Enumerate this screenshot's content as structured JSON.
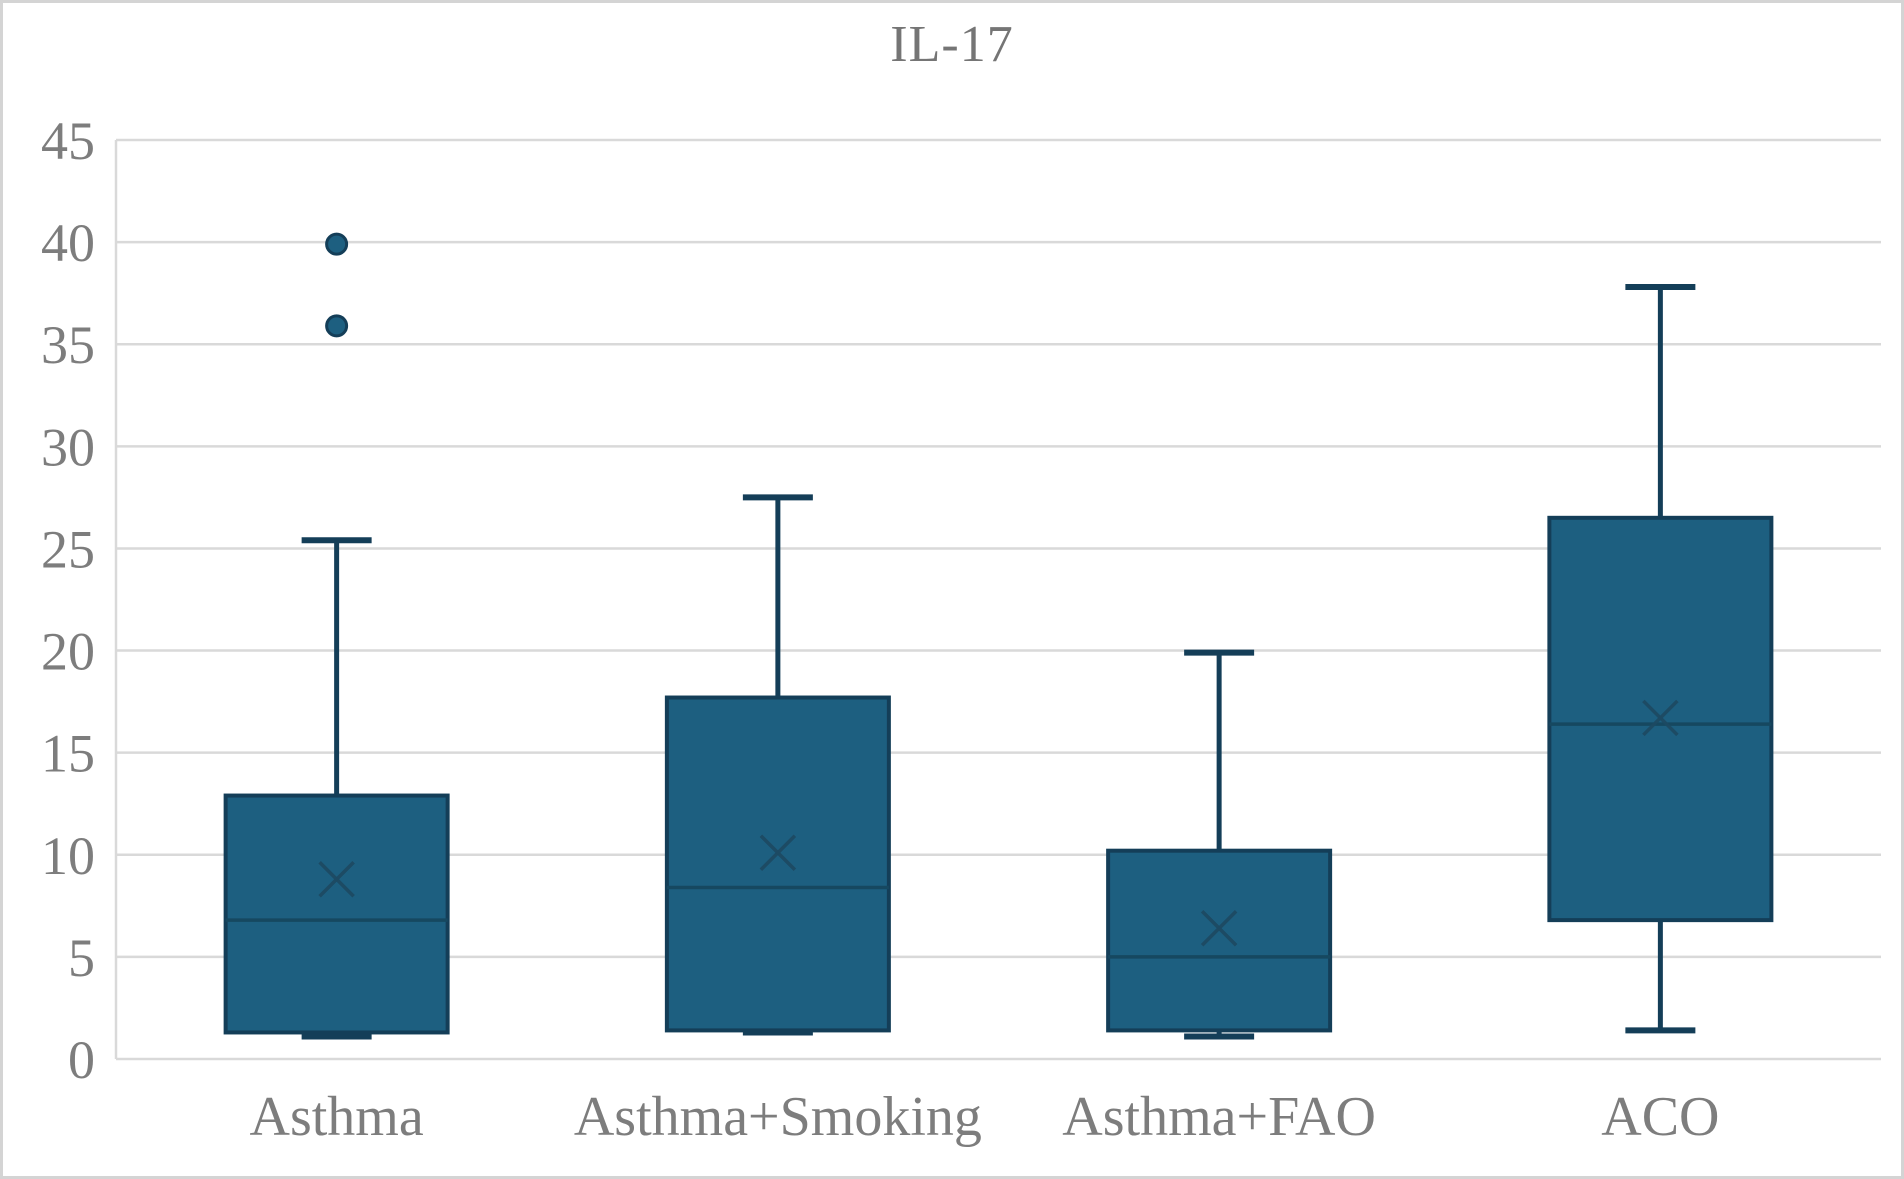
{
  "chart_data": {
    "type": "boxplot",
    "title": "IL-17",
    "categories": [
      "Asthma",
      "Asthma+Smoking",
      "Asthma+FAO",
      "ACO"
    ],
    "series": [
      {
        "name": "Asthma",
        "min": 1.1,
        "q1": 1.3,
        "median": 6.8,
        "mean": 8.8,
        "q3": 12.9,
        "max": 25.4,
        "outliers": [
          35.9,
          39.9
        ]
      },
      {
        "name": "Asthma+Smoking",
        "min": 1.3,
        "q1": 1.4,
        "median": 8.4,
        "mean": 10.1,
        "q3": 17.7,
        "max": 27.5,
        "outliers": []
      },
      {
        "name": "Asthma+FAO",
        "min": 1.1,
        "q1": 1.4,
        "median": 5.0,
        "mean": 6.4,
        "q3": 10.2,
        "max": 19.9,
        "outliers": []
      },
      {
        "name": "ACO",
        "min": 1.4,
        "q1": 6.8,
        "median": 16.4,
        "mean": 16.7,
        "q3": 26.5,
        "max": 37.8,
        "outliers": []
      }
    ],
    "xlabel": "",
    "ylabel": "",
    "ylim": [
      0,
      45
    ],
    "yticks": [
      0,
      5,
      10,
      15,
      20,
      25,
      30,
      35,
      40,
      45
    ],
    "grid": true,
    "legend": "none",
    "colors": {
      "box_fill": "#1d5f80",
      "box_stroke": "#143e58",
      "median_line": "#164860",
      "mean_marker": "#1d4a63",
      "outlier_fill": "#1d5f80",
      "outlier_stroke": "#143e58",
      "gridline": "#d9d9d9",
      "axis_text": "#7d7d7d"
    }
  }
}
